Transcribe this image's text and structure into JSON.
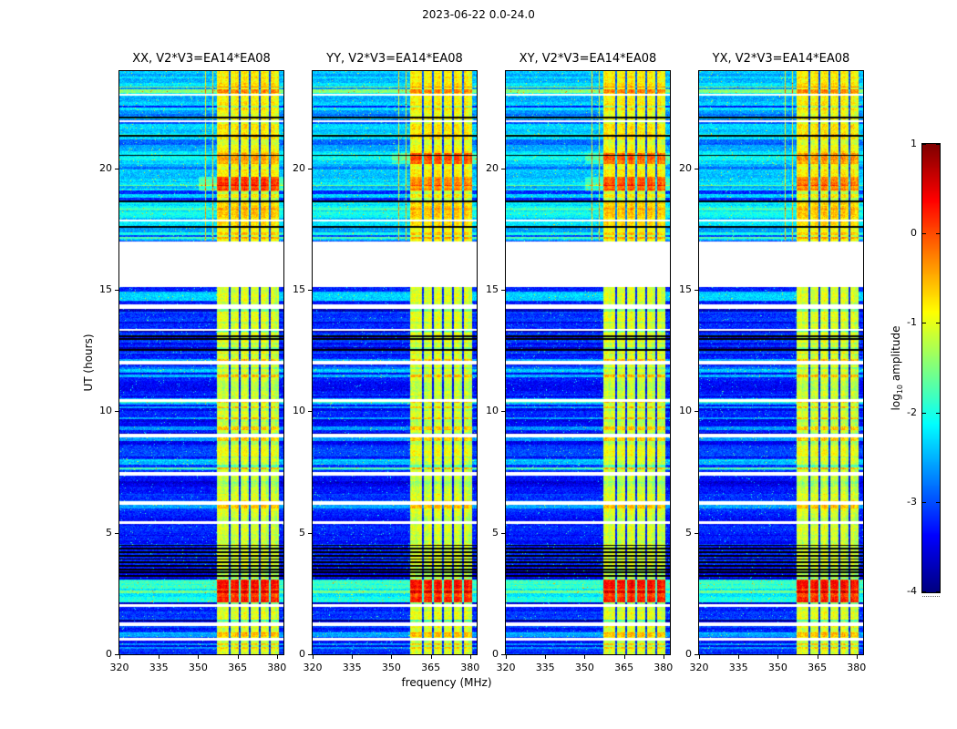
{
  "figure": {
    "title": "2023-06-22 0.0-24.0",
    "xlabel": "frequency (MHz)",
    "ylabel": "UT (hours)"
  },
  "colorbar": {
    "label_prefix": "log",
    "label_sub": "10",
    "label_suffix": " amplitude",
    "ticks": [
      1,
      0,
      -1,
      -2,
      -3,
      -4
    ],
    "vmin": -4,
    "vmax": 1,
    "colormap": "jet"
  },
  "chart_data": {
    "type": "heatmap",
    "title": "2023-06-22 0.0-24.0",
    "xlabel": "frequency (MHz)",
    "ylabel": "UT (hours)",
    "xlim": [
      320,
      382.5
    ],
    "ylim": [
      0,
      24
    ],
    "xticks": [
      320,
      335,
      350,
      365,
      380
    ],
    "yticks": [
      0,
      5,
      10,
      15,
      20
    ],
    "grid": false,
    "colorbar": {
      "label": "log10 amplitude",
      "ticks": [
        1,
        0,
        -1,
        -2,
        -3,
        -4
      ],
      "range": [
        -4,
        1
      ],
      "colormap": "jet",
      "position": "right"
    },
    "panels": [
      {
        "label": "XX, V2*V3=EA14*EA08",
        "pol": "XX",
        "baseline": "EA14*EA08"
      },
      {
        "label": "YY, V2*V3=EA14*EA08",
        "pol": "YY",
        "baseline": "EA14*EA08"
      },
      {
        "label": "XY, V2*V3=EA14*EA08",
        "pol": "XY",
        "baseline": "EA14*EA08"
      },
      {
        "label": "YX, V2*V3=EA14*EA08",
        "pol": "YX",
        "baseline": "EA14*EA08"
      }
    ],
    "render_hints": {
      "seed": 42,
      "band_mhz": [
        357,
        380.7
      ],
      "band_dark_lines_mhz": [
        361.8,
        365.6,
        369.4,
        373.2,
        377.0
      ],
      "white_vlines_mhz": [
        352.6,
        355.4
      ],
      "upper_region_start": 17.05,
      "hot_interval_hours": [
        [
          2.15,
          3.1
        ]
      ],
      "cyan_stripe_hours": [
        [
          7.6,
          8.05
        ],
        [
          10.3,
          10.55
        ],
        [
          11.6,
          11.85
        ],
        [
          14.55,
          14.95
        ]
      ],
      "white_gaps_hours": [
        [
          0.6,
          0.7
        ],
        [
          1.2,
          1.32
        ],
        [
          1.98,
          2.08
        ],
        [
          5.37,
          5.5
        ],
        [
          6.18,
          6.32
        ],
        [
          7.38,
          7.52
        ],
        [
          8.95,
          9.08
        ],
        [
          10.42,
          10.5
        ],
        [
          11.95,
          12.08
        ],
        [
          13.32,
          13.4
        ],
        [
          14.25,
          14.42
        ],
        [
          15.12,
          17.02
        ],
        [
          17.85,
          17.92
        ],
        [
          21.93,
          22.0
        ],
        [
          23.0,
          23.07
        ]
      ],
      "black_lines_hours": [
        3.25,
        3.38,
        3.52,
        3.66,
        3.8,
        3.94,
        4.08,
        4.22,
        4.36,
        4.5,
        12.55,
        12.98,
        13.12,
        17.6,
        18.65,
        20.55,
        21.35,
        22.1
      ],
      "band_blobs": [
        {
          "t": [
            19.05,
            19.65
          ],
          "boost": [
            0.85,
            0.45,
            0.7,
            0.5
          ]
        },
        {
          "t": [
            20.2,
            20.65
          ],
          "boost": [
            0.25,
            0.65,
            0.55,
            0.3
          ]
        }
      ]
    }
  }
}
